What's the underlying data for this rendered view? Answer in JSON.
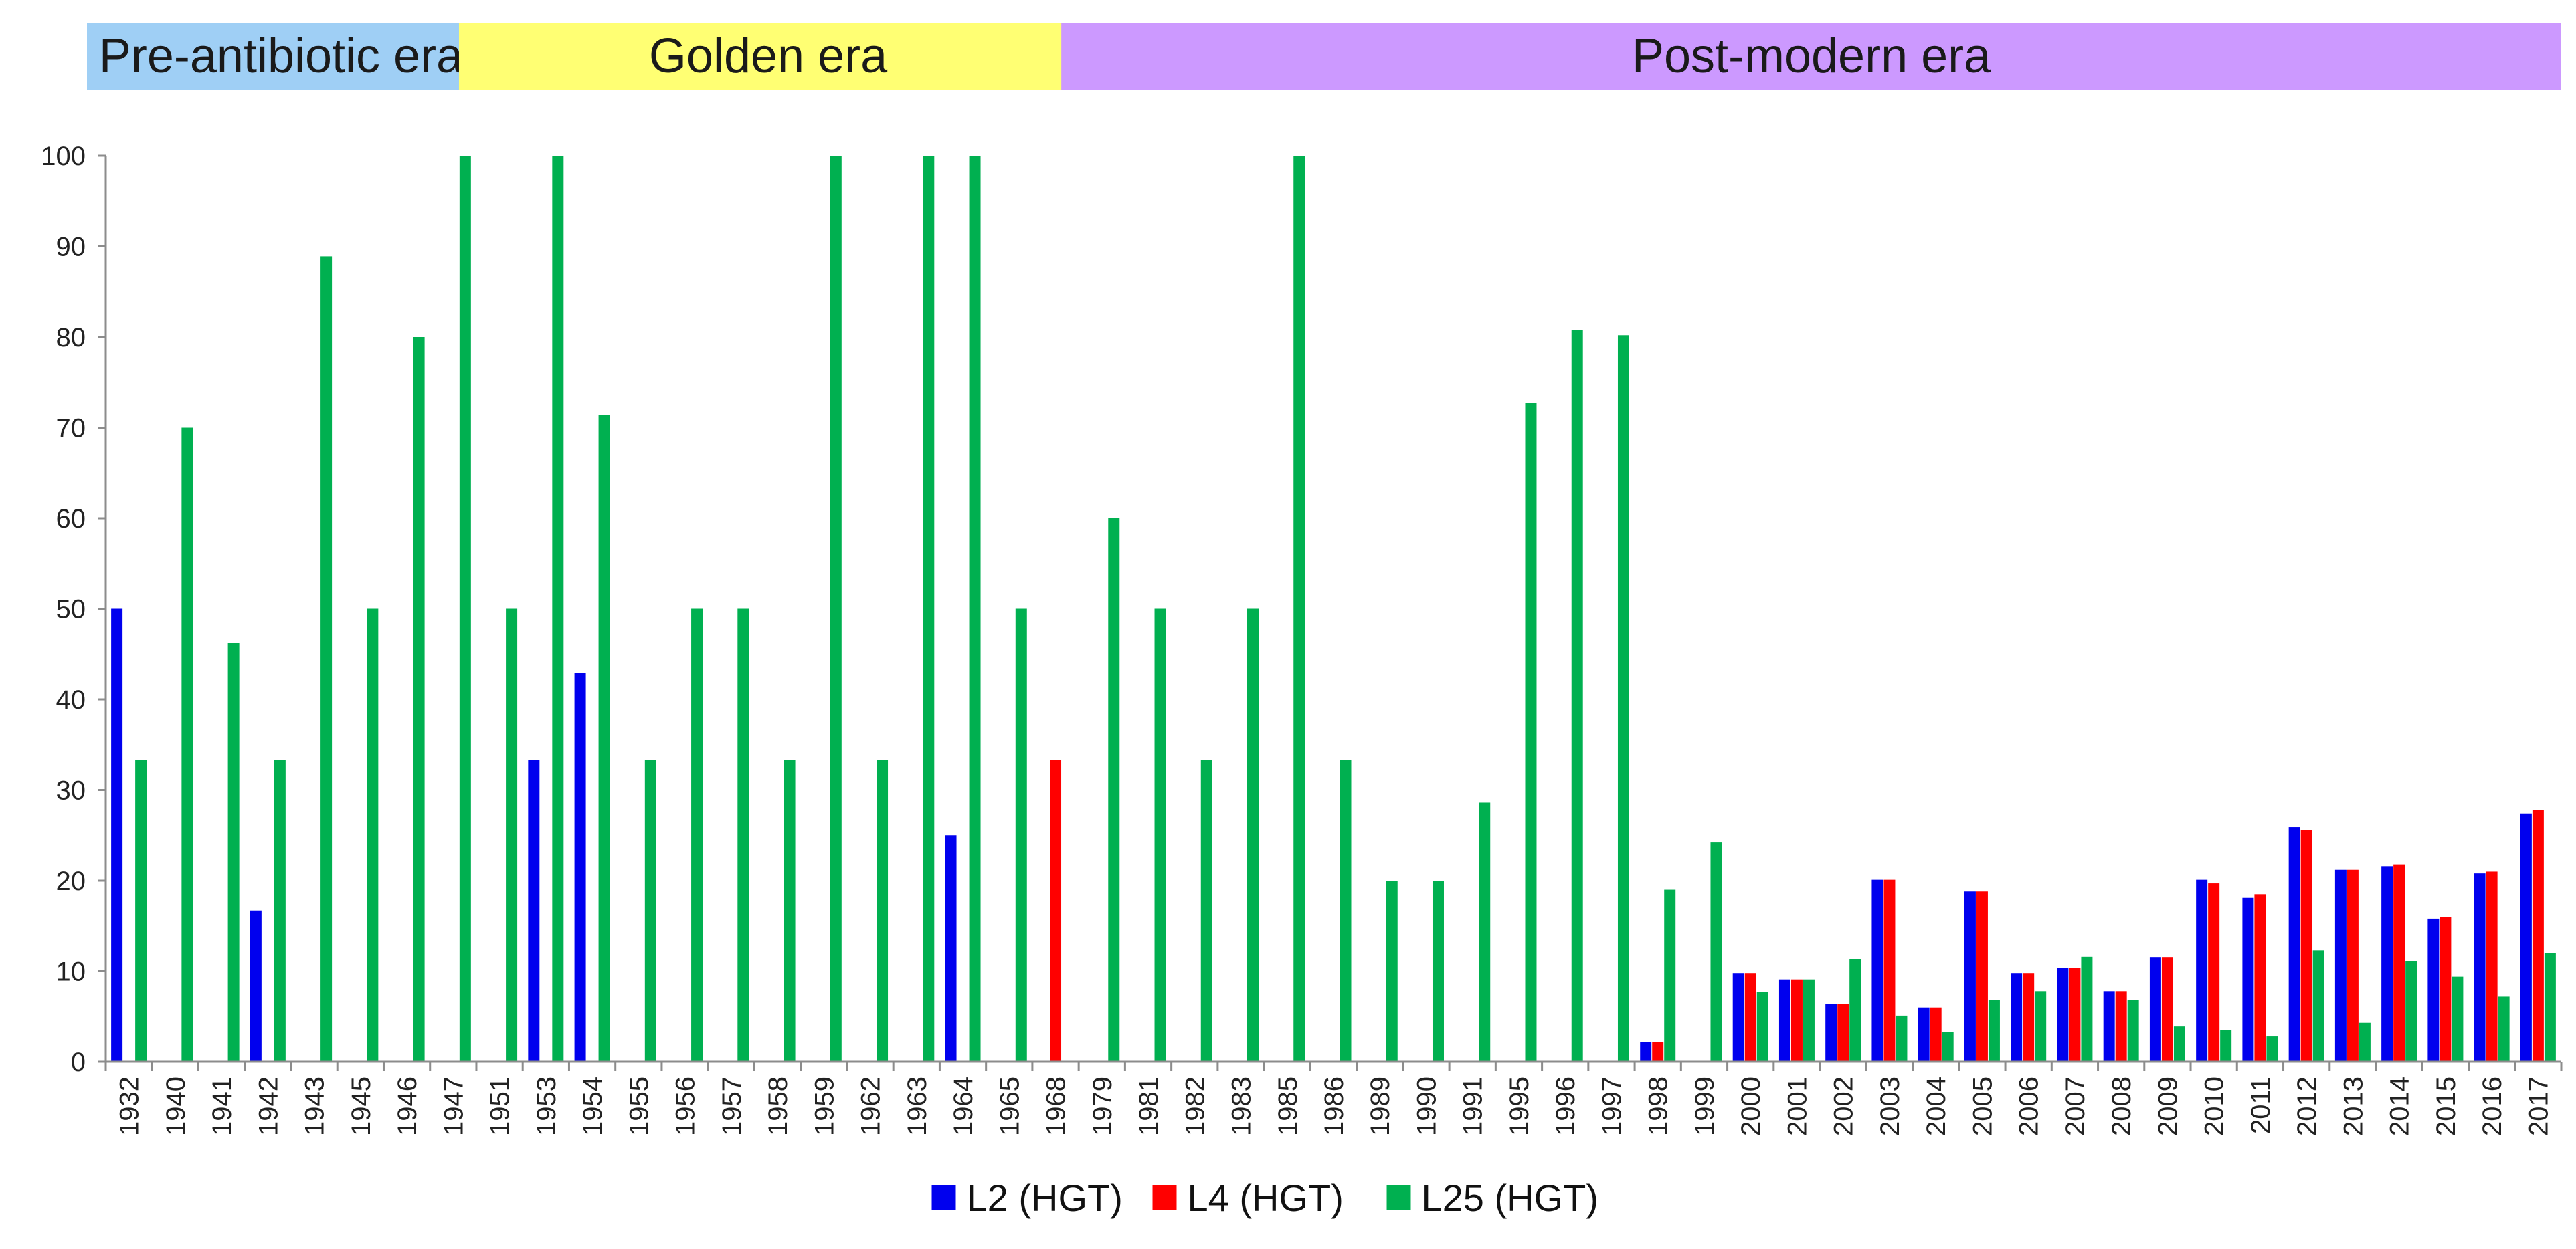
{
  "chart_data": {
    "type": "bar",
    "title": "",
    "xlabel": "",
    "ylabel": "",
    "ylim": [
      0,
      100
    ],
    "yticks": [
      0,
      10,
      20,
      30,
      40,
      50,
      60,
      70,
      80,
      90,
      100
    ],
    "grid": false,
    "legend_position": "bottom-center",
    "eras": [
      {
        "label": "Pre-antibiotic era",
        "color": "#9fcff5",
        "from": "1932",
        "to": "1947"
      },
      {
        "label": "Golden era",
        "color": "#ffff73",
        "from": "1951",
        "to": "1968"
      },
      {
        "label": "Post-modern era",
        "color": "#cc99ff",
        "from": "1979",
        "to": "2017"
      }
    ],
    "categories": [
      "1932",
      "1940",
      "1941",
      "1942",
      "1943",
      "1945",
      "1946",
      "1947",
      "1951",
      "1953",
      "1954",
      "1955",
      "1956",
      "1957",
      "1958",
      "1959",
      "1962",
      "1963",
      "1964",
      "1965",
      "1968",
      "1979",
      "1981",
      "1982",
      "1983",
      "1985",
      "1986",
      "1989",
      "1990",
      "1991",
      "1995",
      "1996",
      "1997",
      "1998",
      "1999",
      "2000",
      "2001",
      "2002",
      "2003",
      "2004",
      "2005",
      "2006",
      "2007",
      "2008",
      "2009",
      "2010",
      "2011",
      "2012",
      "2013",
      "2014",
      "2015",
      "2016",
      "2017"
    ],
    "series": [
      {
        "name": "L2 (HGT)",
        "color": "#0000ee",
        "values": [
          50,
          0,
          0,
          16.7,
          0,
          0,
          0,
          0,
          0,
          33.3,
          42.9,
          0,
          0,
          0,
          0,
          0,
          0,
          0,
          25,
          0,
          0,
          0,
          0,
          0,
          0,
          0,
          0,
          0,
          0,
          0,
          0,
          0,
          0,
          2.2,
          0,
          9.8,
          9.1,
          6.4,
          20.1,
          6,
          18.8,
          9.8,
          10.4,
          7.8,
          11.5,
          20.1,
          18.1,
          25.9,
          21.2,
          21.6,
          15.8,
          20.8,
          27.4
        ]
      },
      {
        "name": "L4 (HGT)",
        "color": "#ff0000",
        "values": [
          0,
          0,
          0,
          0,
          0,
          0,
          0,
          0,
          0,
          0,
          0,
          0,
          0,
          0,
          0,
          0,
          0,
          0,
          0,
          0,
          33.3,
          0,
          0,
          0,
          0,
          0,
          0,
          0,
          0,
          0,
          0,
          0,
          0,
          2.2,
          0,
          9.8,
          9.1,
          6.4,
          20.1,
          6,
          18.8,
          9.8,
          10.4,
          7.8,
          11.5,
          19.7,
          18.5,
          25.6,
          21.2,
          21.8,
          16,
          21,
          27.8
        ]
      },
      {
        "name": "L25 (HGT)",
        "color": "#00b050",
        "values": [
          33.3,
          70,
          46.2,
          33.3,
          88.9,
          50,
          80,
          100,
          50,
          100,
          71.4,
          33.3,
          50,
          50,
          33.3,
          100,
          33.3,
          100,
          100,
          50,
          0,
          60,
          50,
          33.3,
          50,
          100,
          33.3,
          20,
          20,
          28.6,
          72.7,
          80.8,
          80.2,
          19,
          24.2,
          7.7,
          9.1,
          11.3,
          5.1,
          3.3,
          6.8,
          7.8,
          11.6,
          6.8,
          3.9,
          3.5,
          2.8,
          12.3,
          4.3,
          11.1,
          9.4,
          7.2,
          12
        ]
      }
    ]
  }
}
